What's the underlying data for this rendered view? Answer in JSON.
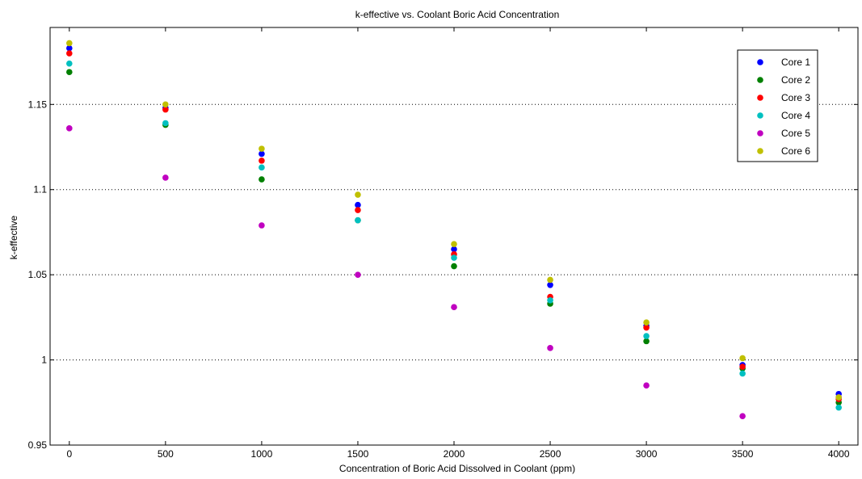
{
  "chart_data": {
    "type": "scatter",
    "title": "k-effective vs. Coolant Boric Acid Concentration",
    "xlabel": "Concentration of Boric Acid Dissolved in Coolant (ppm)",
    "ylabel": "k-effective",
    "xlim": [
      -100,
      4100
    ],
    "ylim": [
      0.95,
      1.1952
    ],
    "xticks": [
      0,
      500,
      1000,
      1500,
      2000,
      2500,
      3000,
      3500,
      4000
    ],
    "xtick_labels": [
      "0",
      "500",
      "1000",
      "1500",
      "2000",
      "2500",
      "3000",
      "3500",
      "4000"
    ],
    "yticks": [
      0.95,
      1.0,
      1.05,
      1.1,
      1.15
    ],
    "ytick_labels": [
      "0.95",
      "1",
      "1.05",
      "1.1",
      "1.15"
    ],
    "grid": "horizontal dotted",
    "legend_position": "top-right",
    "x": [
      0,
      500,
      1000,
      1500,
      2000,
      2500,
      3000,
      3500,
      4000
    ],
    "series": [
      {
        "name": "Core 1",
        "color": "#0000ff",
        "values": [
          1.183,
          1.148,
          1.121,
          1.091,
          1.065,
          1.044,
          1.02,
          0.997,
          0.98
        ]
      },
      {
        "name": "Core 2",
        "color": "#008000",
        "values": [
          1.169,
          1.138,
          1.106,
          1.082,
          1.055,
          1.033,
          1.011,
          0.995,
          0.975
        ]
      },
      {
        "name": "Core 3",
        "color": "#ff0000",
        "values": [
          1.18,
          1.147,
          1.117,
          1.088,
          1.062,
          1.037,
          1.019,
          0.996,
          0.977
        ]
      },
      {
        "name": "Core 4",
        "color": "#00c0c0",
        "values": [
          1.174,
          1.139,
          1.113,
          1.082,
          1.06,
          1.035,
          1.014,
          0.992,
          0.972
        ]
      },
      {
        "name": "Core 5",
        "color": "#c000c0",
        "values": [
          1.136,
          1.107,
          1.079,
          1.05,
          1.031,
          1.007,
          0.985,
          0.967,
          0.978
        ]
      },
      {
        "name": "Core 6",
        "color": "#c0c000",
        "values": [
          1.186,
          1.15,
          1.124,
          1.097,
          1.068,
          1.047,
          1.022,
          1.001,
          0.978
        ]
      }
    ]
  }
}
